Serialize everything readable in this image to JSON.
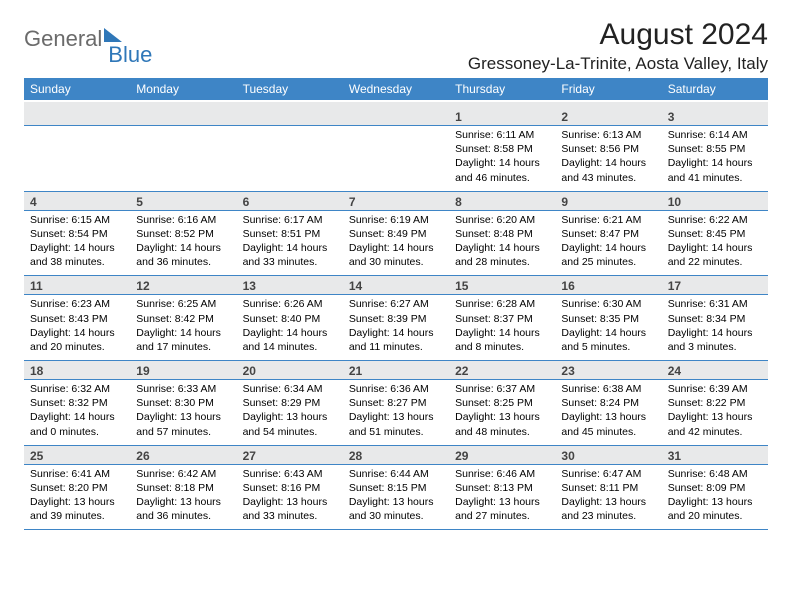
{
  "logo": {
    "word1": "General",
    "word2": "Blue"
  },
  "header": {
    "month_title": "August 2024",
    "location": "Gressoney-La-Trinite, Aosta Valley, Italy"
  },
  "colors": {
    "header_bg": "#3e85c6",
    "header_text": "#ffffff",
    "daynum_bg": "#e8e9ea",
    "row_border": "#3e85c6",
    "logo_gray": "#6b6b6b",
    "logo_blue": "#2f77b8"
  },
  "weekdays": [
    "Sunday",
    "Monday",
    "Tuesday",
    "Wednesday",
    "Thursday",
    "Friday",
    "Saturday"
  ],
  "weeks": [
    [
      null,
      null,
      null,
      null,
      {
        "n": "1",
        "sunrise": "Sunrise: 6:11 AM",
        "sunset": "Sunset: 8:58 PM",
        "daylight": "Daylight: 14 hours and 46 minutes."
      },
      {
        "n": "2",
        "sunrise": "Sunrise: 6:13 AM",
        "sunset": "Sunset: 8:56 PM",
        "daylight": "Daylight: 14 hours and 43 minutes."
      },
      {
        "n": "3",
        "sunrise": "Sunrise: 6:14 AM",
        "sunset": "Sunset: 8:55 PM",
        "daylight": "Daylight: 14 hours and 41 minutes."
      }
    ],
    [
      {
        "n": "4",
        "sunrise": "Sunrise: 6:15 AM",
        "sunset": "Sunset: 8:54 PM",
        "daylight": "Daylight: 14 hours and 38 minutes."
      },
      {
        "n": "5",
        "sunrise": "Sunrise: 6:16 AM",
        "sunset": "Sunset: 8:52 PM",
        "daylight": "Daylight: 14 hours and 36 minutes."
      },
      {
        "n": "6",
        "sunrise": "Sunrise: 6:17 AM",
        "sunset": "Sunset: 8:51 PM",
        "daylight": "Daylight: 14 hours and 33 minutes."
      },
      {
        "n": "7",
        "sunrise": "Sunrise: 6:19 AM",
        "sunset": "Sunset: 8:49 PM",
        "daylight": "Daylight: 14 hours and 30 minutes."
      },
      {
        "n": "8",
        "sunrise": "Sunrise: 6:20 AM",
        "sunset": "Sunset: 8:48 PM",
        "daylight": "Daylight: 14 hours and 28 minutes."
      },
      {
        "n": "9",
        "sunrise": "Sunrise: 6:21 AM",
        "sunset": "Sunset: 8:47 PM",
        "daylight": "Daylight: 14 hours and 25 minutes."
      },
      {
        "n": "10",
        "sunrise": "Sunrise: 6:22 AM",
        "sunset": "Sunset: 8:45 PM",
        "daylight": "Daylight: 14 hours and 22 minutes."
      }
    ],
    [
      {
        "n": "11",
        "sunrise": "Sunrise: 6:23 AM",
        "sunset": "Sunset: 8:43 PM",
        "daylight": "Daylight: 14 hours and 20 minutes."
      },
      {
        "n": "12",
        "sunrise": "Sunrise: 6:25 AM",
        "sunset": "Sunset: 8:42 PM",
        "daylight": "Daylight: 14 hours and 17 minutes."
      },
      {
        "n": "13",
        "sunrise": "Sunrise: 6:26 AM",
        "sunset": "Sunset: 8:40 PM",
        "daylight": "Daylight: 14 hours and 14 minutes."
      },
      {
        "n": "14",
        "sunrise": "Sunrise: 6:27 AM",
        "sunset": "Sunset: 8:39 PM",
        "daylight": "Daylight: 14 hours and 11 minutes."
      },
      {
        "n": "15",
        "sunrise": "Sunrise: 6:28 AM",
        "sunset": "Sunset: 8:37 PM",
        "daylight": "Daylight: 14 hours and 8 minutes."
      },
      {
        "n": "16",
        "sunrise": "Sunrise: 6:30 AM",
        "sunset": "Sunset: 8:35 PM",
        "daylight": "Daylight: 14 hours and 5 minutes."
      },
      {
        "n": "17",
        "sunrise": "Sunrise: 6:31 AM",
        "sunset": "Sunset: 8:34 PM",
        "daylight": "Daylight: 14 hours and 3 minutes."
      }
    ],
    [
      {
        "n": "18",
        "sunrise": "Sunrise: 6:32 AM",
        "sunset": "Sunset: 8:32 PM",
        "daylight": "Daylight: 14 hours and 0 minutes."
      },
      {
        "n": "19",
        "sunrise": "Sunrise: 6:33 AM",
        "sunset": "Sunset: 8:30 PM",
        "daylight": "Daylight: 13 hours and 57 minutes."
      },
      {
        "n": "20",
        "sunrise": "Sunrise: 6:34 AM",
        "sunset": "Sunset: 8:29 PM",
        "daylight": "Daylight: 13 hours and 54 minutes."
      },
      {
        "n": "21",
        "sunrise": "Sunrise: 6:36 AM",
        "sunset": "Sunset: 8:27 PM",
        "daylight": "Daylight: 13 hours and 51 minutes."
      },
      {
        "n": "22",
        "sunrise": "Sunrise: 6:37 AM",
        "sunset": "Sunset: 8:25 PM",
        "daylight": "Daylight: 13 hours and 48 minutes."
      },
      {
        "n": "23",
        "sunrise": "Sunrise: 6:38 AM",
        "sunset": "Sunset: 8:24 PM",
        "daylight": "Daylight: 13 hours and 45 minutes."
      },
      {
        "n": "24",
        "sunrise": "Sunrise: 6:39 AM",
        "sunset": "Sunset: 8:22 PM",
        "daylight": "Daylight: 13 hours and 42 minutes."
      }
    ],
    [
      {
        "n": "25",
        "sunrise": "Sunrise: 6:41 AM",
        "sunset": "Sunset: 8:20 PM",
        "daylight": "Daylight: 13 hours and 39 minutes."
      },
      {
        "n": "26",
        "sunrise": "Sunrise: 6:42 AM",
        "sunset": "Sunset: 8:18 PM",
        "daylight": "Daylight: 13 hours and 36 minutes."
      },
      {
        "n": "27",
        "sunrise": "Sunrise: 6:43 AM",
        "sunset": "Sunset: 8:16 PM",
        "daylight": "Daylight: 13 hours and 33 minutes."
      },
      {
        "n": "28",
        "sunrise": "Sunrise: 6:44 AM",
        "sunset": "Sunset: 8:15 PM",
        "daylight": "Daylight: 13 hours and 30 minutes."
      },
      {
        "n": "29",
        "sunrise": "Sunrise: 6:46 AM",
        "sunset": "Sunset: 8:13 PM",
        "daylight": "Daylight: 13 hours and 27 minutes."
      },
      {
        "n": "30",
        "sunrise": "Sunrise: 6:47 AM",
        "sunset": "Sunset: 8:11 PM",
        "daylight": "Daylight: 13 hours and 23 minutes."
      },
      {
        "n": "31",
        "sunrise": "Sunrise: 6:48 AM",
        "sunset": "Sunset: 8:09 PM",
        "daylight": "Daylight: 13 hours and 20 minutes."
      }
    ]
  ]
}
